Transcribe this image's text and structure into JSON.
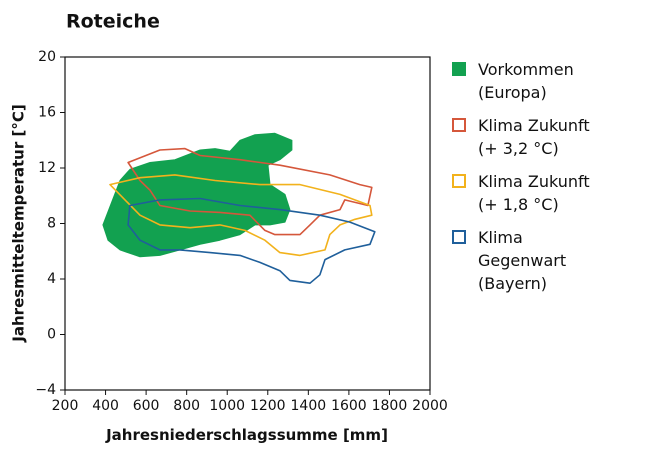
{
  "chart_data": {
    "type": "area",
    "title": "Roteiche",
    "xlabel": "Jahresniederschlagssumme [mm]",
    "ylabel": "Jahresmitteltemperatur [°C]",
    "xlim": [
      200,
      2000
    ],
    "xticks": [
      200,
      400,
      600,
      800,
      1000,
      1200,
      1400,
      1600,
      1800,
      2000
    ],
    "ylim": [
      -4,
      20
    ],
    "yticks": [
      {
        "value": -4,
        "label": "−4"
      },
      0,
      4,
      8,
      12,
      16,
      20
    ],
    "series": [
      {
        "name": "Vorkommen (Europa)",
        "color": "#12a150",
        "filled": true,
        "x": [
          387,
          471,
          520,
          619,
          742,
          866,
          940,
          1013,
          1063,
          1137,
          1235,
          1319,
          1319,
          1260,
          1201,
          1211,
          1285,
          1309,
          1285,
          1211,
          1137,
          1063,
          964,
          866,
          767,
          668,
          570,
          471,
          412
        ],
        "y": [
          7.9,
          11.1,
          11.9,
          12.4,
          12.6,
          13.3,
          13.4,
          13.2,
          14.0,
          14.4,
          14.5,
          14.0,
          13.3,
          12.6,
          12.2,
          10.8,
          10.1,
          9.0,
          8.1,
          7.9,
          7.9,
          7.2,
          6.8,
          6.5,
          6.1,
          5.7,
          5.6,
          6.1,
          6.8
        ]
      },
      {
        "name": "Klima Zukunft (+ 3,2 °C)",
        "color": "#d5573b",
        "filled": false,
        "x": [
          511,
          668,
          792,
          866,
          1063,
          1260,
          1506,
          1654,
          1713,
          1694,
          1580,
          1556,
          1457,
          1408,
          1359,
          1235,
          1186,
          1112,
          964,
          817,
          668,
          619,
          570
        ],
        "y": [
          12.4,
          13.3,
          13.4,
          12.9,
          12.6,
          12.2,
          11.5,
          10.8,
          10.6,
          9.3,
          9.7,
          9.0,
          8.6,
          7.9,
          7.2,
          7.2,
          7.5,
          8.6,
          8.8,
          8.9,
          9.3,
          10.4,
          11.1
        ]
      },
      {
        "name": "Klima Zukunft (+ 1,8 °C)",
        "color": "#f2b21c",
        "filled": false,
        "x": [
          422,
          570,
          742,
          940,
          1161,
          1359,
          1556,
          1704,
          1713,
          1630,
          1556,
          1506,
          1482,
          1359,
          1260,
          1186,
          1087,
          964,
          817,
          668,
          570,
          496
        ],
        "y": [
          10.8,
          11.3,
          11.5,
          11.1,
          10.8,
          10.8,
          10.1,
          9.3,
          8.6,
          8.3,
          7.9,
          7.2,
          6.1,
          5.7,
          5.9,
          6.8,
          7.5,
          7.9,
          7.7,
          7.9,
          8.6,
          9.7
        ]
      },
      {
        "name": "Klima Gegenwart (Bayern)",
        "color": "#1f5f9b",
        "filled": false,
        "x": [
          520,
          668,
          866,
          1063,
          1260,
          1457,
          1605,
          1728,
          1704,
          1580,
          1482,
          1457,
          1408,
          1309,
          1260,
          1161,
          1063,
          915,
          767,
          668,
          570,
          511
        ],
        "y": [
          9.3,
          9.7,
          9.8,
          9.3,
          9.0,
          8.6,
          8.1,
          7.4,
          6.5,
          6.1,
          5.4,
          4.3,
          3.7,
          3.9,
          4.6,
          5.2,
          5.7,
          5.9,
          6.1,
          6.1,
          6.8,
          7.9
        ]
      }
    ]
  }
}
